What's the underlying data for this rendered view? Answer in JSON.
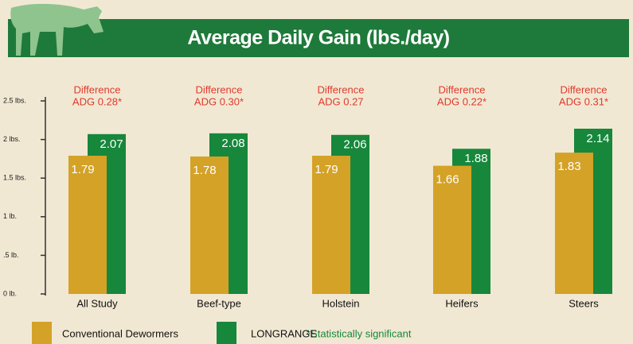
{
  "chart_data": {
    "type": "bar",
    "title": "Average Daily Gain (lbs./day)",
    "categories": [
      "All Study",
      "Beef-type",
      "Holstein",
      "Heifers",
      "Steers"
    ],
    "series": [
      {
        "name": "Conventional Dewormers",
        "color": "#d4a227",
        "values": [
          1.79,
          1.78,
          1.79,
          1.66,
          1.83
        ]
      },
      {
        "name": "LONGRANGE",
        "color": "#17873c",
        "values": [
          2.07,
          2.08,
          2.06,
          1.88,
          2.14
        ]
      }
    ],
    "annotations": [
      [
        "Difference",
        "ADG 0.28*"
      ],
      [
        "Difference",
        "ADG 0.30*"
      ],
      [
        "Difference",
        "ADG 0.27"
      ],
      [
        "Difference",
        "ADG 0.22*"
      ],
      [
        "Difference",
        "ADG 0.31*"
      ]
    ],
    "footnote": "*Statistically significant",
    "ylim": [
      0,
      2.5
    ],
    "yticks": [
      {
        "value": 0,
        "label": "0 lb."
      },
      {
        "value": 0.5,
        "label": ".5 lb."
      },
      {
        "value": 1,
        "label": "1 lb."
      },
      {
        "value": 1.5,
        "label": "1.5 lbs."
      },
      {
        "value": 2,
        "label": "2 lbs."
      },
      {
        "value": 2.5,
        "label": "2.5 lbs."
      }
    ]
  }
}
